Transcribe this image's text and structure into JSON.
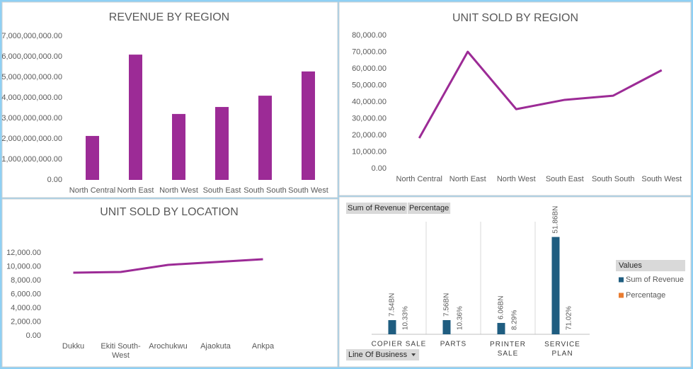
{
  "chart_data": [
    {
      "type": "bar",
      "title": "REVENUE BY REGION",
      "categories": [
        "North Central",
        "North East",
        "North West",
        "South East",
        "South South",
        "South West"
      ],
      "values": [
        2140000000,
        6100000000,
        3210000000,
        3550000000,
        4100000000,
        5280000000
      ],
      "color": "#9c2b96",
      "ylim": [
        0,
        7000000000
      ],
      "yticks": [
        {
          "value": 0,
          "label": "0.00"
        },
        {
          "value": 1000000000,
          "label": "1,000,000,000.00"
        },
        {
          "value": 2000000000,
          "label": "2,000,000,000.00"
        },
        {
          "value": 3000000000,
          "label": "3,000,000,000.00"
        },
        {
          "value": 4000000000,
          "label": "4,000,000,000.00"
        },
        {
          "value": 5000000000,
          "label": "5,000,000,000.00"
        },
        {
          "value": 6000000000,
          "label": "6,000,000,000.00"
        },
        {
          "value": 7000000000,
          "label": "7,000,000,000.00"
        }
      ],
      "grid": false
    },
    {
      "type": "line",
      "title": "UNIT SOLD BY REGION",
      "categories": [
        "North Central",
        "North East",
        "North West",
        "South East",
        "South South",
        "South West"
      ],
      "values": [
        18300,
        70200,
        35700,
        41300,
        43800,
        59100
      ],
      "color": "#9c2b96",
      "ylim": [
        0,
        80000
      ],
      "yticks": [
        {
          "value": 0,
          "label": "0.00"
        },
        {
          "value": 10000,
          "label": "10,000.00"
        },
        {
          "value": 20000,
          "label": "20,000.00"
        },
        {
          "value": 30000,
          "label": "30,000.00"
        },
        {
          "value": 40000,
          "label": "40,000.00"
        },
        {
          "value": 50000,
          "label": "50,000.00"
        },
        {
          "value": 60000,
          "label": "60,000.00"
        },
        {
          "value": 70000,
          "label": "70,000.00"
        },
        {
          "value": 80000,
          "label": "80,000.00"
        }
      ],
      "grid": false
    },
    {
      "type": "line",
      "title": "UNIT SOLD BY LOCATION",
      "categories": [
        "Dukku",
        "Ekiti South-West",
        "Arochukwu",
        "Ajaokuta",
        "Ankpa"
      ],
      "values": [
        9130,
        9230,
        10260,
        10670,
        11080
      ],
      "color": "#9c2b96",
      "ylim": [
        0,
        12000
      ],
      "yticks": [
        {
          "value": 0,
          "label": "0.00"
        },
        {
          "value": 2000,
          "label": "2,000.00"
        },
        {
          "value": 4000,
          "label": "4,000.00"
        },
        {
          "value": 6000,
          "label": "6,000.00"
        },
        {
          "value": 8000,
          "label": "8,000.00"
        },
        {
          "value": 10000,
          "label": "10,000.00"
        },
        {
          "value": 12000,
          "label": "12,000.00"
        }
      ],
      "grid": false
    },
    {
      "type": "bar",
      "x_label": "Line Of Business",
      "legend_title": "Values",
      "legend": "right",
      "categories": [
        "COPIER SALE",
        "PARTS",
        "PRINTER SALE",
        "SERVICE PLAN"
      ],
      "series": [
        {
          "name": "Sum of Revenue",
          "color": "#1f5d80",
          "values": [
            7540000000,
            7560000000,
            6060000000,
            51860000000
          ],
          "value_labels": [
            "7.54BN",
            "7.56BN",
            "6.06BN",
            "51.86BN"
          ]
        },
        {
          "name": "Percentage",
          "color": "#e97c30",
          "values": [
            10.33,
            10.36,
            8.29,
            71.02
          ],
          "value_labels": [
            "10.33%",
            "10.36%",
            "8.29%",
            "71.02%"
          ]
        }
      ],
      "ylim": [
        0,
        60000000000
      ],
      "grid": false
    }
  ]
}
